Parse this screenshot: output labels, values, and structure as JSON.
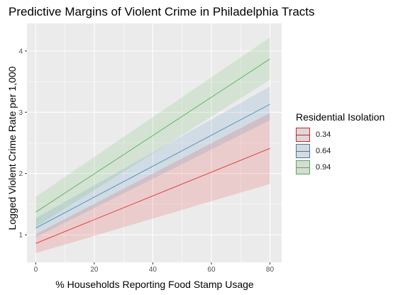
{
  "chart_data": {
    "type": "line",
    "title": "Predictive Margins of Violent Crime in Philadelphia Tracts",
    "xlabel": "% Households Reporting Food Stamp Usage",
    "ylabel": "Logged Violent Crime Rate per 1,000",
    "xlim": [
      -3,
      84
    ],
    "ylim": [
      0.55,
      4.45
    ],
    "x_ticks": [
      0,
      20,
      40,
      60,
      80
    ],
    "y_ticks": [
      1,
      2,
      3,
      4
    ],
    "grid": true,
    "legend": {
      "title": "Residential Isolation",
      "position": "right"
    },
    "series": [
      {
        "name": "0.34",
        "x": [
          0,
          80
        ],
        "y": [
          0.86,
          2.41
        ],
        "lower": [
          0.7,
          1.83
        ],
        "upper": [
          1.01,
          2.99
        ],
        "color": "#e31a1c"
      },
      {
        "name": "0.64",
        "x": [
          0,
          80
        ],
        "y": [
          1.11,
          3.13
        ],
        "lower": [
          0.96,
          2.87
        ],
        "upper": [
          1.27,
          3.42
        ],
        "color": "#377eb8"
      },
      {
        "name": "0.94",
        "x": [
          0,
          80
        ],
        "y": [
          1.37,
          3.87
        ],
        "lower": [
          1.13,
          3.53
        ],
        "upper": [
          1.62,
          4.22
        ],
        "color": "#4daf4a"
      }
    ]
  }
}
